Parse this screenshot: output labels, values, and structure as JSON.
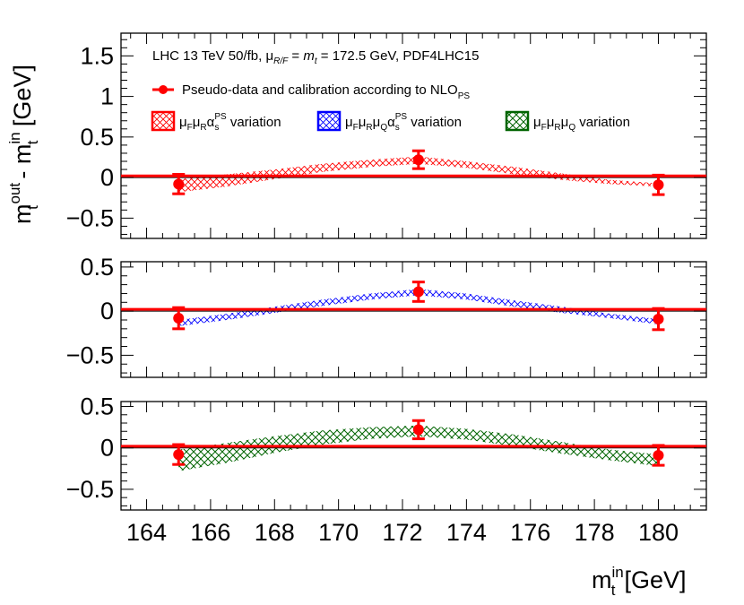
{
  "chart_data": {
    "type": "scatter",
    "x_axis": {
      "label_main": "m",
      "label_sup": "in",
      "label_sub": "t",
      "label_unit": "[GeV]",
      "range": [
        163.2,
        181.5
      ],
      "ticks": [
        164,
        166,
        168,
        170,
        172,
        174,
        176,
        178,
        180
      ],
      "tick_labels": [
        "164",
        "166",
        "168",
        "170",
        "172",
        "174",
        "176",
        "178",
        "180"
      ]
    },
    "y_axis": {
      "label_parts": [
        "m",
        "out",
        "t",
        " - m",
        "in",
        "t",
        " [GeV]"
      ]
    },
    "annotation": {
      "prefix": "LHC 13 TeV 50/fb, ",
      "mu": "μ",
      "mu_sub": "R/F",
      "eq": " = ",
      "mt": "m",
      "mt_sub": "t",
      "suffix": " = 172.5 GeV, PDF4LHC15"
    },
    "legend": {
      "pseudo_data": {
        "text": "Pseudo-data and calibration according to NLO",
        "sub": "PS",
        "color": "#ff0000"
      },
      "variations": [
        {
          "parts": [
            [
              "μ",
              ""
            ],
            [
              "",
              "F"
            ],
            [
              "μ",
              ""
            ],
            [
              "",
              "R"
            ],
            [
              "α",
              ""
            ],
            [
              "",
              "s"
            ]
          ],
          "sup": "PS",
          "tail": " variation",
          "color": "#ff0000"
        },
        {
          "parts": [
            [
              "μ",
              ""
            ],
            [
              "",
              "F"
            ],
            [
              "μ",
              ""
            ],
            [
              "",
              "R"
            ],
            [
              "μ",
              ""
            ],
            [
              "",
              "Q"
            ],
            [
              "α",
              ""
            ],
            [
              "",
              "s"
            ]
          ],
          "sup": "PS",
          "tail": " variation",
          "color": "#0000ff"
        },
        {
          "parts": [
            [
              "μ",
              ""
            ],
            [
              "",
              "F"
            ],
            [
              "μ",
              ""
            ],
            [
              "",
              "R"
            ],
            [
              "μ",
              ""
            ],
            [
              "",
              "Q"
            ]
          ],
          "sup": "",
          "tail": " variation",
          "color": "#006400"
        }
      ]
    },
    "pseudo_data_points": [
      {
        "x": 165.0,
        "y": -0.08,
        "err": 0.12
      },
      {
        "x": 172.5,
        "y": 0.22,
        "err": 0.11
      },
      {
        "x": 180.0,
        "y": -0.09,
        "err": 0.12
      }
    ],
    "calibration_line_y": 0.02,
    "panels": [
      {
        "name": "mu_F mu_R alpha_s^PS variation",
        "color": "#ff0000",
        "ylim": [
          -0.75,
          1.78
        ],
        "ticks": [
          -0.5,
          0,
          0.5,
          1,
          1.5
        ],
        "tick_labels": [
          "−0.5",
          "0",
          "0.5",
          "1",
          "1.5"
        ],
        "band_x": [
          165,
          166.5,
          168,
          169.5,
          171,
          172.5,
          174,
          175.5,
          177,
          178.5,
          180
        ],
        "band_low": [
          -0.18,
          -0.11,
          -0.02,
          0.07,
          0.13,
          0.17,
          0.12,
          0.04,
          -0.03,
          -0.08,
          -0.11
        ],
        "band_high": [
          -0.02,
          0.04,
          0.1,
          0.17,
          0.22,
          0.26,
          0.2,
          0.13,
          0.05,
          -0.03,
          -0.07
        ]
      },
      {
        "name": "mu_F mu_R mu_Q alpha_s^PS variation",
        "color": "#0000ff",
        "ylim": [
          -0.75,
          0.56
        ],
        "ticks": [
          -0.5,
          0,
          0.5
        ],
        "tick_labels": [
          "−0.5",
          "0",
          "0.5"
        ],
        "band_x": [
          165,
          166.5,
          168,
          169.5,
          171,
          172.5,
          174,
          175.5,
          177,
          178.5,
          180
        ],
        "band_low": [
          -0.17,
          -0.1,
          -0.02,
          0.06,
          0.13,
          0.18,
          0.13,
          0.05,
          -0.02,
          -0.08,
          -0.15
        ],
        "band_high": [
          -0.1,
          -0.03,
          0.05,
          0.13,
          0.2,
          0.25,
          0.2,
          0.12,
          0.05,
          -0.03,
          -0.09
        ]
      },
      {
        "name": "mu_F mu_R mu_Q variation",
        "color": "#006400",
        "ylim": [
          -0.75,
          0.56
        ],
        "ticks": [
          -0.5,
          0,
          0.5
        ],
        "tick_labels": [
          "−0.5",
          "0",
          "0.5"
        ],
        "band_x": [
          165,
          166.5,
          168,
          169.5,
          171,
          172.5,
          174,
          175.5,
          177,
          178.5,
          180
        ],
        "band_low": [
          -0.28,
          -0.18,
          -0.06,
          0.04,
          0.11,
          0.14,
          0.1,
          0.02,
          -0.07,
          -0.15,
          -0.22
        ],
        "band_high": [
          -0.02,
          0.06,
          0.14,
          0.21,
          0.25,
          0.27,
          0.23,
          0.16,
          0.07,
          -0.02,
          -0.08
        ]
      }
    ]
  }
}
